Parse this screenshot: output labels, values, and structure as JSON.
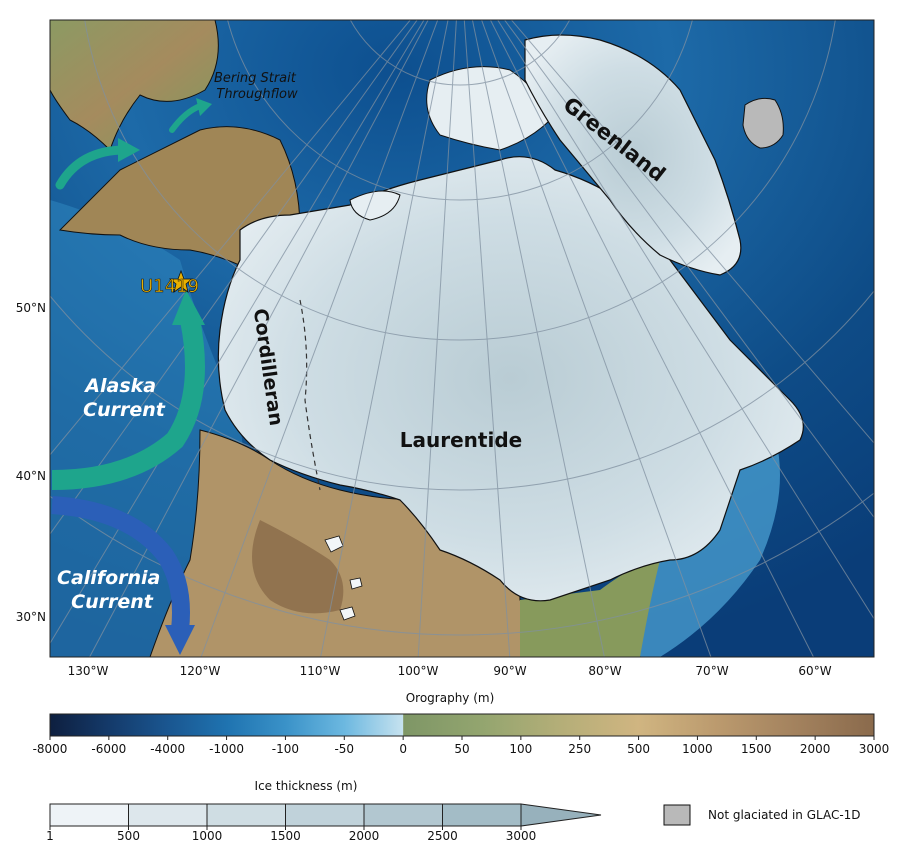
{
  "map": {
    "latitude_labels": [
      {
        "text": "50°N",
        "value": 50
      },
      {
        "text": "40°N",
        "value": 40
      },
      {
        "text": "30°N",
        "value": 30
      }
    ],
    "longitude_labels": [
      {
        "text": "130°W",
        "value": -130
      },
      {
        "text": "120°W",
        "value": -120
      },
      {
        "text": "110°W",
        "value": -110
      },
      {
        "text": "100°W",
        "value": -100
      },
      {
        "text": "90°W",
        "value": -90
      },
      {
        "text": "80°W",
        "value": -80
      },
      {
        "text": "70°W",
        "value": -70
      },
      {
        "text": "60°W",
        "value": -60
      }
    ],
    "ice_sheets": {
      "greenland": "Greenland",
      "cordilleran": "Cordilleran",
      "laurentide": "Laurentide"
    },
    "currents": {
      "bering": "Bering Strait\nThroughflow",
      "alaska": "Alaska\nCurrent",
      "california": "California\nCurrent"
    },
    "site": {
      "label": "U1419",
      "color": "#e8b000"
    },
    "colors": {
      "ocean_deep": "#0a3d78",
      "ocean_mid": "#1f6fb0",
      "ocean_shelf": "#6cc0e6",
      "ice": "#dde9ef",
      "land_low": "#7f9960",
      "land_high": "#8a6a48",
      "alaska_current": "#1ea58c",
      "california_current": "#2b5fb8",
      "not_glaciated": "#b9b9b9"
    }
  },
  "orography_legend": {
    "title": "Orography (m)",
    "ticks": [
      "-8000",
      "-6000",
      "-4000",
      "-1000",
      "-100",
      "-50",
      "0",
      "50",
      "100",
      "250",
      "500",
      "1000",
      "1500",
      "2000",
      "3000"
    ],
    "colors": [
      "#0e1f3f",
      "#143a6a",
      "#1a5690",
      "#1f73b0",
      "#3a92c8",
      "#6cb8e0",
      "#c6e2ef",
      "#7e9666",
      "#93a56f",
      "#b4ae78",
      "#d0b581",
      "#bb9a6e",
      "#a3825e",
      "#8a6a4c"
    ]
  },
  "ice_legend": {
    "title": "Ice thickness (m)",
    "ticks": [
      "1",
      "500",
      "1000",
      "1500",
      "2000",
      "2500",
      "3000"
    ],
    "colors": [
      "#eef3f7",
      "#dde7ec",
      "#cfdde3",
      "#c0d2da",
      "#b2c7d0",
      "#a3bcc6",
      "#97b1bc"
    ]
  },
  "not_glaciated_legend": {
    "label": "Not glaciated in GLAC-1D"
  }
}
